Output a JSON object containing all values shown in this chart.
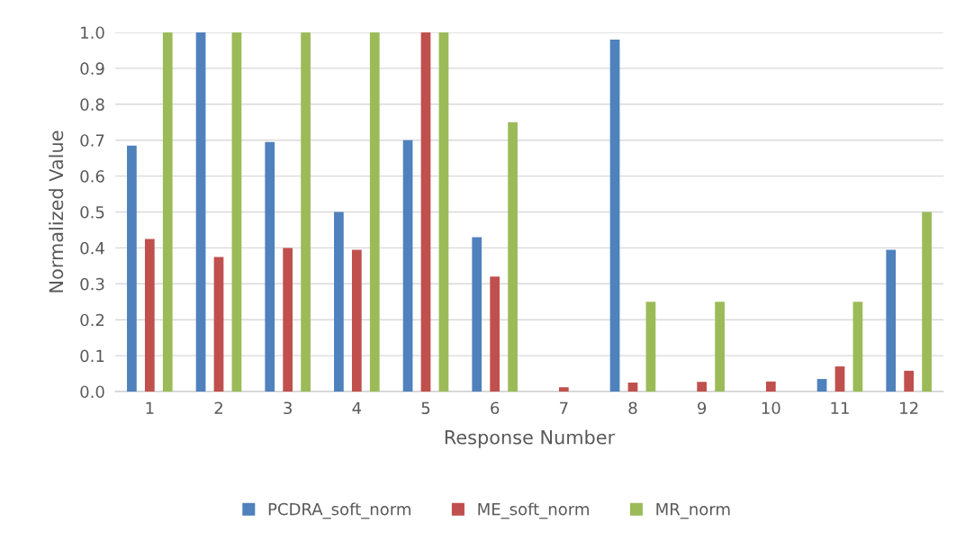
{
  "chart_data": {
    "type": "bar",
    "xlabel": "Response Number",
    "ylabel": "Normalized Value",
    "categories": [
      "1",
      "2",
      "3",
      "4",
      "5",
      "6",
      "7",
      "8",
      "9",
      "10",
      "11",
      "12"
    ],
    "series": [
      {
        "name": "PCDRA_soft_norm",
        "color": "#4f81bd",
        "values": [
          0.685,
          1.0,
          0.695,
          0.5,
          0.7,
          0.43,
          0,
          0.98,
          0,
          0,
          0.035,
          0.395
        ]
      },
      {
        "name": "ME_soft_norm",
        "color": "#c0504d",
        "values": [
          0.425,
          0.375,
          0.4,
          0.395,
          1.0,
          0.32,
          0.012,
          0.025,
          0.027,
          0.028,
          0.07,
          0.058
        ]
      },
      {
        "name": "MR_norm",
        "color": "#9bbb59",
        "values": [
          1.0,
          1.0,
          1.0,
          1.0,
          1.0,
          0.75,
          0,
          0.25,
          0.25,
          0,
          0.25,
          0.5
        ]
      }
    ],
    "ylim": [
      0,
      1.0
    ],
    "yticks": [
      {
        "value": 0,
        "label": "0.0"
      },
      {
        "value": 0.1,
        "label": "0.1"
      },
      {
        "value": 0.2,
        "label": "0.2"
      },
      {
        "value": 0.3,
        "label": "0.3"
      },
      {
        "value": 0.4,
        "label": "0.4"
      },
      {
        "value": 0.5,
        "label": "0.5"
      },
      {
        "value": 0.6,
        "label": "0.6"
      },
      {
        "value": 0.7,
        "label": "0.7"
      },
      {
        "value": 0.8,
        "label": "0.8"
      },
      {
        "value": 0.9,
        "label": "0.9"
      },
      {
        "value": 1.0,
        "label": "1.0"
      }
    ],
    "grid": "y",
    "legend": "bottom"
  }
}
